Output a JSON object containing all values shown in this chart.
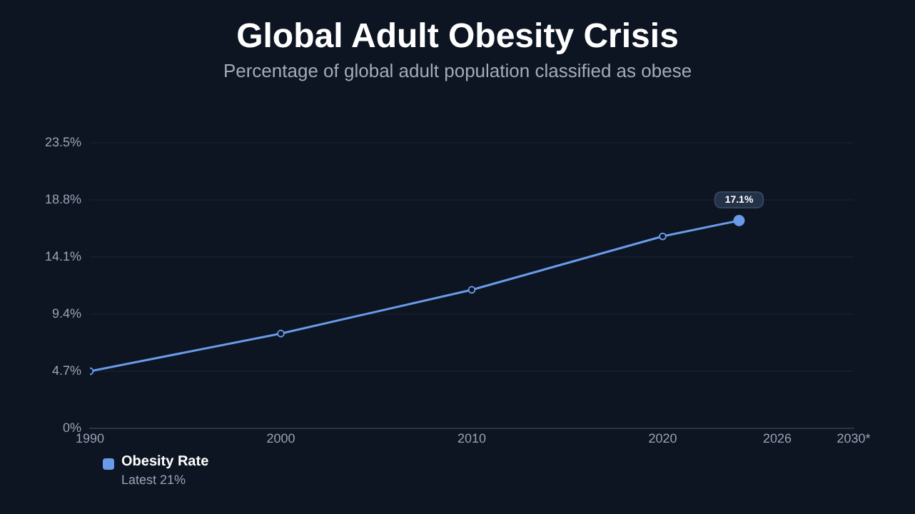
{
  "chart_data": {
    "type": "line",
    "title": "Global Adult Obesity Crisis",
    "subtitle": "Percentage of global adult population classified as obese",
    "x": [
      1990,
      2000,
      2010,
      2020,
      2024
    ],
    "series": [
      {
        "name": "Obesity Rate",
        "color": "#6a9be8",
        "values": [
          4.7,
          7.8,
          11.4,
          15.8,
          17.1
        ],
        "value_labels": [
          null,
          null,
          null,
          null,
          "17.1%"
        ]
      }
    ],
    "xlim": [
      1990,
      2030
    ],
    "xticks": [
      1990,
      2000,
      2010,
      2020,
      2026,
      {
        "value": 2030,
        "label": "2030*"
      }
    ],
    "ylim": [
      0,
      23.5
    ],
    "yticks": [
      {
        "value": 0,
        "label": "0%"
      },
      {
        "value": 4.7,
        "label": "4.7%"
      },
      {
        "value": 9.4,
        "label": "9.4%"
      },
      {
        "value": 14.1,
        "label": "14.1%"
      },
      {
        "value": 18.8,
        "label": "18.8%"
      },
      {
        "value": 23.5,
        "label": "23.5%"
      }
    ],
    "grid": "y",
    "legend": "bottom left",
    "marker": "circle",
    "line_style": "solid",
    "annotations": [
      "Latest 21%"
    ]
  }
}
